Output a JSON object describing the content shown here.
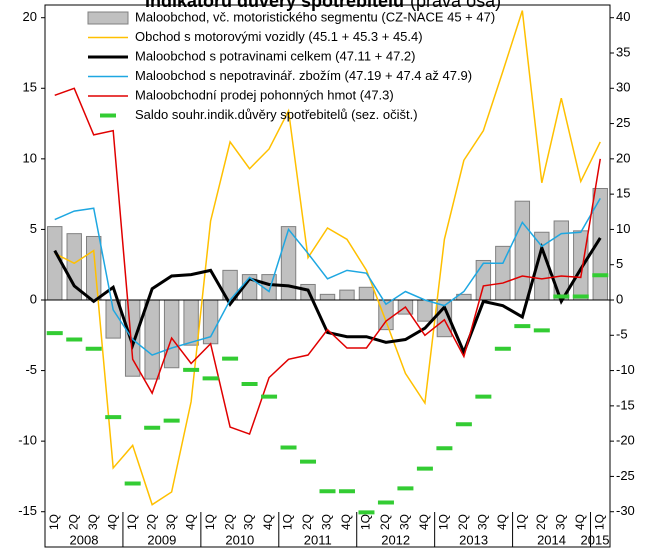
{
  "chart_data": {
    "type": "combo",
    "title": "Indikátoru důvěry spotřebitelů",
    "subtitle": "(pravá osa)",
    "categories": [
      "1Q",
      "2Q",
      "3Q",
      "4Q",
      "1Q",
      "2Q",
      "3Q",
      "4Q",
      "1Q",
      "2Q",
      "3Q",
      "4Q",
      "1Q",
      "2Q",
      "3Q",
      "4Q",
      "1Q",
      "2Q",
      "3Q",
      "4Q",
      "1Q",
      "2Q",
      "3Q",
      "4Q",
      "1Q",
      "2Q",
      "3Q",
      "4Q",
      "1Q"
    ],
    "years": [
      "2008",
      "2009",
      "2010",
      "2011",
      "2012",
      "2013",
      "2014",
      "2015"
    ],
    "ylim": [
      -17.5,
      20.9
    ],
    "yticks": [
      -15,
      -10,
      -5,
      0,
      5,
      10,
      15,
      20
    ],
    "y2lim": [
      -35,
      41.8
    ],
    "y2ticks": [
      -30,
      -25,
      -20,
      -15,
      -10,
      -5,
      0,
      5,
      10,
      15,
      20,
      25,
      30,
      35,
      40
    ],
    "series": [
      {
        "name": "Maloobchod, vč. motoristického segmentu (CZ-NACE 45 + 47)",
        "style": "bar",
        "color": "#c0c0c0",
        "values": [
          5.2,
          4.7,
          4.5,
          -2.7,
          -5.4,
          -5.6,
          -4.8,
          -3.2,
          -3.1,
          2.1,
          1.8,
          1.8,
          5.2,
          1.1,
          0.4,
          0.7,
          0.9,
          -2.1,
          -1.0,
          -1.5,
          -2.6,
          0.4,
          2.8,
          3.8,
          7.0,
          4.8,
          5.6,
          4.9,
          7.9
        ]
      },
      {
        "name": "Obchod s motorovými vozidly (45.1 + 45.3 + 45.4)",
        "style": "line",
        "color": "#ffc000",
        "values": [
          3.3,
          2.6,
          3.5,
          -11.9,
          -10.3,
          -14.5,
          -13.6,
          -7.2,
          5.6,
          11.2,
          9.3,
          10.7,
          13.4,
          3.0,
          5.1,
          4.3,
          2.1,
          -1.5,
          -5.2,
          -7.3,
          4.3,
          9.9,
          12.0,
          16.2,
          20.5,
          8.3,
          14.3,
          8.4,
          11.2
        ]
      },
      {
        "name": "Maloobchod s potravinami celkem (47.11 + 47.2)",
        "style": "line",
        "color": "#000000",
        "values": [
          3.5,
          1.0,
          -0.1,
          0.9,
          -3.2,
          0.8,
          1.7,
          1.8,
          2.1,
          -0.3,
          1.5,
          1.1,
          1.0,
          0.7,
          -2.3,
          -2.6,
          -2.6,
          -3.0,
          -2.8,
          -2.0,
          -0.5,
          -3.7,
          -0.1,
          -0.4,
          -1.2,
          3.7,
          -0.1,
          2.2,
          4.4
        ]
      },
      {
        "name": "Maloobchod s nepotravinář. zbožím (47.19 + 47.4 až 47.9)",
        "style": "line",
        "color": "#1ea7e1",
        "values": [
          5.7,
          6.3,
          6.5,
          -0.7,
          -2.8,
          -3.9,
          -3.4,
          -3.0,
          -2.6,
          0.0,
          1.6,
          0.6,
          5.0,
          3.3,
          1.5,
          2.1,
          1.9,
          -0.3,
          0.6,
          0.0,
          -0.4,
          0.6,
          2.6,
          2.6,
          5.5,
          3.8,
          4.7,
          4.8,
          7.2
        ]
      },
      {
        "name": "Maloobchodní prodej pohonných hmot (47.3)",
        "style": "line",
        "color": "#e00000",
        "values": [
          14.5,
          15.0,
          11.7,
          12.0,
          -4.2,
          -6.6,
          -2.7,
          -4.5,
          -3.1,
          -9.0,
          -9.5,
          -5.5,
          -4.2,
          -3.9,
          -2.1,
          -3.4,
          -3.4,
          -1.5,
          -0.5,
          -2.5,
          -1.4,
          -4.0,
          1.0,
          1.2,
          1.7,
          1.5,
          1.7,
          1.6,
          10.0
        ]
      },
      {
        "name": "Saldo souhr.indik.důvěry spotřebitelů (sez. očišt.)",
        "style": "dash",
        "color": "#33cc33",
        "axis": "y2",
        "values": [
          -4.7,
          -5.6,
          -6.9,
          -16.6,
          -26,
          -18.1,
          -17.1,
          -9.9,
          -11.1,
          -8.3,
          -11.9,
          -13.7,
          -20.9,
          -22.9,
          -27.1,
          -27.1,
          -30.1,
          -28.7,
          -26.7,
          -23.9,
          -21,
          -17.6,
          -13.7,
          -6.9,
          -3.7,
          -4.3,
          0.5,
          0.5,
          3.5
        ]
      }
    ]
  }
}
